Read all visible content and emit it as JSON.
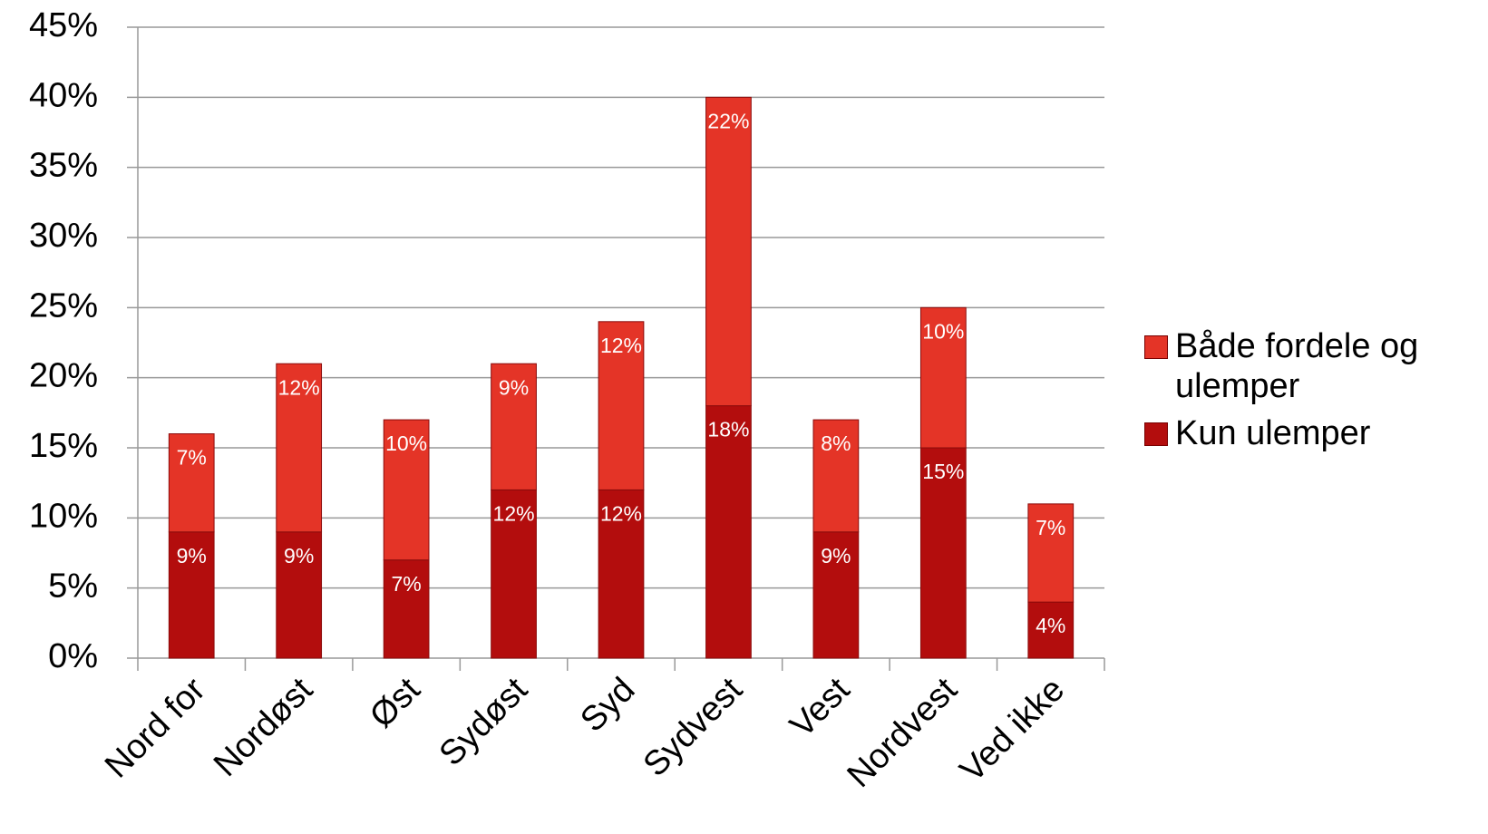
{
  "chart_data": {
    "type": "stacked-bar",
    "categories": [
      "Nord for",
      "Nordøst",
      "Øst",
      "Sydøst",
      "Syd",
      "Sydvest",
      "Vest",
      "Nordvest",
      "Ved ikke"
    ],
    "series": [
      {
        "name": "Kun ulemper",
        "color": "#b30d0d",
        "values": [
          9,
          9,
          7,
          12,
          12,
          18,
          9,
          15,
          4
        ],
        "value_labels": [
          "9%",
          "9%",
          "7%",
          "12%",
          "12%",
          "18%",
          "9%",
          "15%",
          "4%"
        ]
      },
      {
        "name": "Både fordele og ulemper",
        "color": "#e43427",
        "values": [
          7,
          12,
          10,
          9,
          12,
          22,
          8,
          10,
          7
        ],
        "value_labels": [
          "7%",
          "12%",
          "10%",
          "9%",
          "12%",
          "22%",
          "8%",
          "10%",
          "7%"
        ]
      }
    ],
    "ylim": [
      0,
      45
    ],
    "yticks": [
      {
        "value": 0,
        "label": "0%"
      },
      {
        "value": 5,
        "label": "5%"
      },
      {
        "value": 10,
        "label": "10%"
      },
      {
        "value": 15,
        "label": "15%"
      },
      {
        "value": 20,
        "label": "20%"
      },
      {
        "value": 25,
        "label": "25%"
      },
      {
        "value": 30,
        "label": "30%"
      },
      {
        "value": 35,
        "label": "35%"
      },
      {
        "value": 40,
        "label": "40%"
      },
      {
        "value": 45,
        "label": "45%"
      }
    ],
    "grid": true,
    "legend": "right"
  }
}
